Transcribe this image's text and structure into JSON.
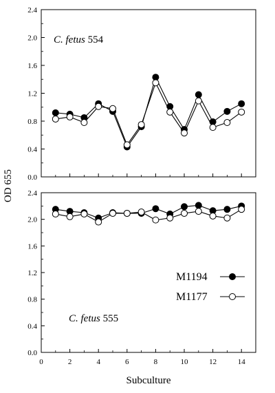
{
  "chart_data": [
    {
      "type": "line",
      "panel": "top",
      "annotation_italic": "C. fetus",
      "annotation_number": "554",
      "x": [
        1,
        2,
        3,
        4,
        5,
        6,
        7,
        8,
        9,
        10,
        11,
        12,
        13,
        14
      ],
      "xlim": [
        0,
        15
      ],
      "ylim": [
        0,
        2.4
      ],
      "yticks": [
        "0.0",
        "0.4",
        "0.8",
        "1.2",
        "1.6",
        "2.0",
        "2.4"
      ],
      "grid": false,
      "series": [
        {
          "name": "M1194",
          "marker": "filled-circle",
          "color": "#000000",
          "values": [
            0.92,
            0.9,
            0.85,
            1.05,
            0.94,
            0.43,
            0.72,
            1.43,
            1.01,
            0.68,
            1.18,
            0.79,
            0.94,
            1.05
          ]
        },
        {
          "name": "M1177",
          "marker": "open-circle",
          "color": "#000000",
          "values": [
            0.83,
            0.86,
            0.78,
            1.01,
            0.98,
            0.46,
            0.75,
            1.35,
            0.93,
            0.63,
            1.09,
            0.71,
            0.78,
            0.93
          ]
        }
      ]
    },
    {
      "type": "line",
      "panel": "bottom",
      "annotation_italic": "C. fetus",
      "annotation_number": "555",
      "x": [
        1,
        2,
        3,
        4,
        5,
        6,
        7,
        8,
        9,
        10,
        11,
        12,
        13,
        14
      ],
      "xlim": [
        0,
        15
      ],
      "xticks": [
        "0",
        "2",
        "4",
        "6",
        "8",
        "10",
        "12",
        "14"
      ],
      "ylim": [
        0,
        2.4
      ],
      "yticks": [
        "0.0",
        "0.4",
        "0.8",
        "1.2",
        "1.6",
        "2.0",
        "2.4"
      ],
      "grid": false,
      "legend_placement": "right",
      "series": [
        {
          "name": "M1194",
          "marker": "filled-circle",
          "color": "#000000",
          "values": [
            2.15,
            2.12,
            2.1,
            2.02,
            2.1,
            2.09,
            2.09,
            2.16,
            2.08,
            2.19,
            2.21,
            2.13,
            2.15,
            2.2
          ]
        },
        {
          "name": "M1177",
          "marker": "open-circle",
          "color": "#000000",
          "values": [
            2.08,
            2.04,
            2.08,
            1.96,
            2.09,
            2.09,
            2.11,
            1.99,
            2.02,
            2.09,
            2.12,
            2.05,
            2.02,
            2.15
          ]
        }
      ]
    }
  ],
  "axes": {
    "ylabel": "OD 655",
    "xlabel": "Subculture"
  },
  "legend": {
    "items": [
      {
        "label": "M1194",
        "marker": "filled-circle"
      },
      {
        "label": "M1177",
        "marker": "open-circle"
      }
    ]
  }
}
